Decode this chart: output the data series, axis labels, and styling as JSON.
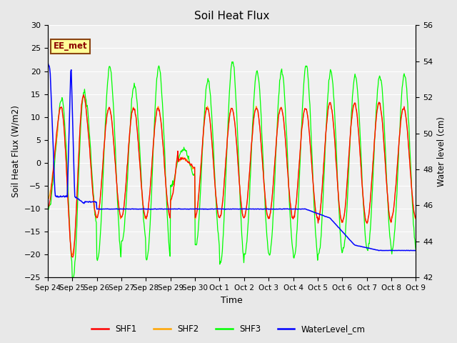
{
  "title": "Soil Heat Flux",
  "ylabel_left": "Soil Heat Flux (W/m2)",
  "ylabel_right": "Water level (cm)",
  "xlabel": "Time",
  "ylim_left": [
    -25,
    30
  ],
  "ylim_right": [
    42,
    56
  ],
  "xtick_labels": [
    "Sep 24",
    "Sep 25",
    "Sep 26",
    "Sep 27",
    "Sep 28",
    "Sep 29",
    "Sep 30",
    "Oct 1",
    "Oct 2",
    "Oct 3",
    "Oct 4",
    "Oct 5",
    "Oct 6",
    "Oct 7",
    "Oct 8",
    "Oct 9"
  ],
  "annotation_text": "EE_met",
  "annotation_bg": "#FFFF99",
  "annotation_border": "#8B4513",
  "colors": {
    "SHF1": "#FF0000",
    "SHF2": "#FFA500",
    "SHF3": "#00FF00",
    "WaterLevel_cm": "#0000FF"
  },
  "fig_bg_color": "#E8E8E8",
  "plot_bg_color": "#F0F0F0",
  "grid_color": "#FFFFFF",
  "n_days": 15,
  "n_points_per_day": 48
}
